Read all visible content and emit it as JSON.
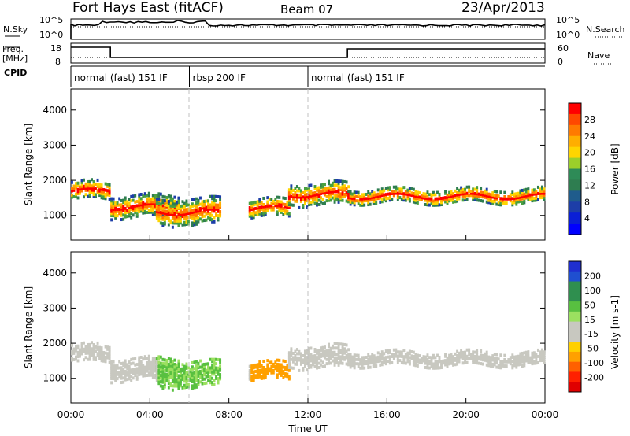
{
  "header": {
    "title": "Fort Hays East (fitACF)",
    "beam": "Beam 07",
    "date": "23/Apr/2013"
  },
  "noise_panel": {
    "left_label": "N.Sky",
    "right_label": "N.Search",
    "left_ticks": [
      "10^5",
      "10^0"
    ],
    "right_ticks": [
      "10^5",
      "10^0"
    ]
  },
  "freq_panel": {
    "left_label_line1": "Freq.",
    "left_label_line2": "[MHz]",
    "right_label": "Nave",
    "left_ticks": [
      "18",
      "8"
    ],
    "right_ticks": [
      "60",
      "0"
    ]
  },
  "cpid_panel": {
    "label": "CPID",
    "modes": [
      {
        "name": "normal (fast) 151 IF",
        "start_hour": 0,
        "end_hour": 6
      },
      {
        "name": "rbsp 200 IF",
        "start_hour": 6,
        "end_hour": 12
      },
      {
        "name": "normal (fast) 151 IF",
        "start_hour": 12,
        "end_hour": 24
      }
    ]
  },
  "power_panel": {
    "ylabel": "Slant Range [km]",
    "colorbar_label": "Power [dB]",
    "colorbar_ticks": [
      "28",
      "24",
      "20",
      "16",
      "12",
      "8",
      "4"
    ],
    "colorbar_colors": [
      "#ff0000",
      "#ff4800",
      "#ff7a00",
      "#ffae00",
      "#ffd500",
      "#9ccf2a",
      "#2e8b57",
      "#2e7d50",
      "#1f5c8c",
      "#1d3ea8",
      "#0a1fd6",
      "#0000ff"
    ],
    "yticks": [
      "4000",
      "3000",
      "2000",
      "1000"
    ]
  },
  "velocity_panel": {
    "ylabel": "Slant Range [km]",
    "colorbar_label": "Velocity [m s-1]",
    "colorbar_ticks": [
      "200",
      "100",
      "50",
      "15",
      "-15",
      "-50",
      "-100",
      "-200"
    ],
    "colorbar_colors": [
      "#1f2fd0",
      "#1f4fd0",
      "#2f8f4f",
      "#2f8f4f",
      "#58c040",
      "#9be060",
      "#c8c8c0",
      "#c8c8c0",
      "#ffd000",
      "#ffa000",
      "#ff6000",
      "#ff2000",
      "#e00000"
    ],
    "yticks": [
      "4000",
      "3000",
      "2000",
      "1000"
    ]
  },
  "xaxis": {
    "label": "Time UT",
    "ticks": [
      "00:00",
      "04:00",
      "08:00",
      "12:00",
      "16:00",
      "20:00",
      "00:00"
    ]
  },
  "chart_data": {
    "type": "heatmap",
    "title": "Fort Hays East (fitACF)",
    "xlabel": "Time UT",
    "ylabel": "Slant Range [km]",
    "xlim": [
      0,
      24
    ],
    "ylim": [
      300,
      4600
    ],
    "series": [
      {
        "name": "Power [dB]",
        "range": [
          0,
          30
        ]
      },
      {
        "name": "Velocity [m s-1]",
        "range": [
          -250,
          250
        ]
      }
    ],
    "echo_bands": [
      {
        "t_start": 0.0,
        "t_end": 2.0,
        "r_center": 1700,
        "width": 250
      },
      {
        "t_start": 2.0,
        "t_end": 5.5,
        "r_center": 1250,
        "width": 300
      },
      {
        "t_start": 4.3,
        "t_end": 7.5,
        "r_center": 1100,
        "width": 350
      },
      {
        "t_start": 9.0,
        "t_end": 11.0,
        "r_center": 1200,
        "width": 250
      },
      {
        "t_start": 11.0,
        "t_end": 14.0,
        "r_center": 1600,
        "width": 300
      },
      {
        "t_start": 14.0,
        "t_end": 24.0,
        "r_center": 1550,
        "width": 200
      }
    ]
  }
}
